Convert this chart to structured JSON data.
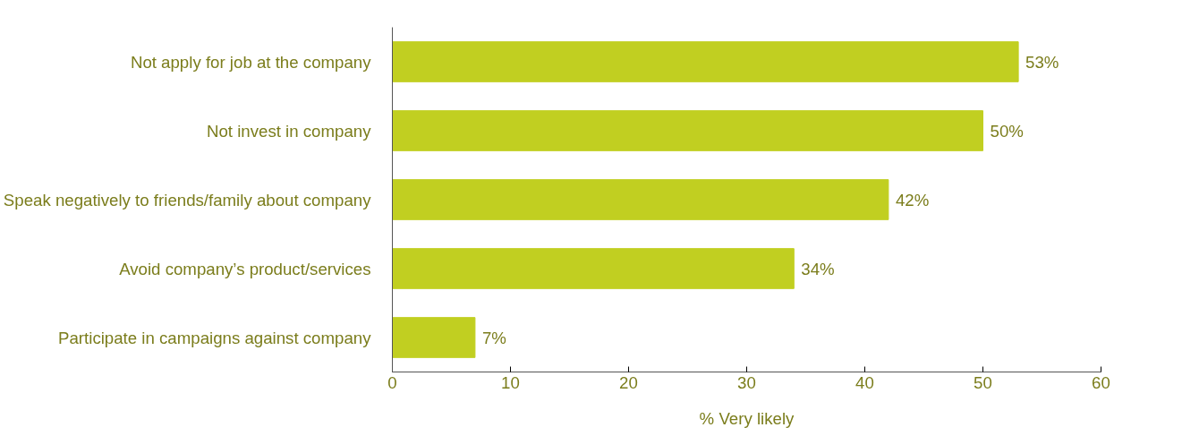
{
  "chart_data": {
    "type": "bar",
    "orientation": "horizontal",
    "xlabel": "% Very likely",
    "categories": [
      "Not apply for job at the company",
      "Not invest in company",
      "Speak negatively to friends/family about company",
      "Avoid company’s product/services",
      "Participate in campaigns against company"
    ],
    "values": [
      53,
      50,
      42,
      34,
      7
    ],
    "value_labels": [
      "53%",
      "50%",
      "42%",
      "34%",
      "7%"
    ],
    "color": "#c1cf21",
    "xlim": [
      0,
      60
    ],
    "xticks": [
      0,
      10,
      20,
      30,
      40,
      50,
      60
    ],
    "grid": false
  }
}
